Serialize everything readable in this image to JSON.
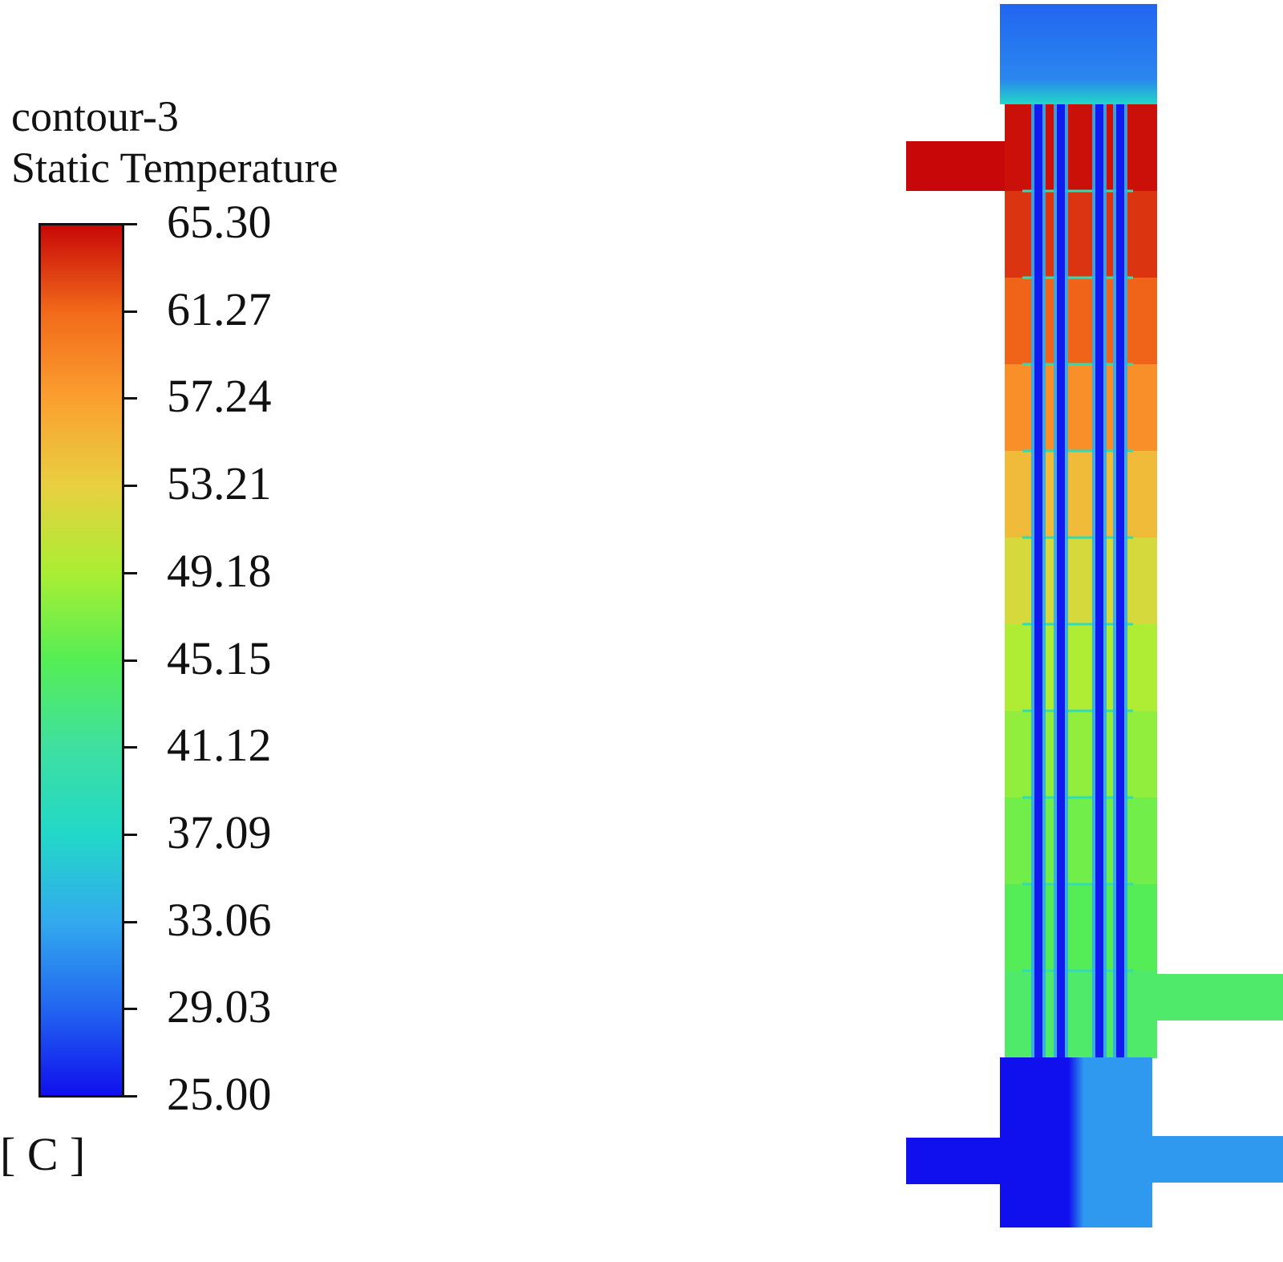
{
  "legend": {
    "title_line1": "contour-3",
    "title_line2": "Static Temperature",
    "unit": "[ C ]",
    "min": 25.0,
    "max": 65.3,
    "tick_labels": [
      "65.30",
      "61.27",
      "57.24",
      "53.21",
      "49.18",
      "45.15",
      "41.12",
      "37.09",
      "33.06",
      "29.03",
      "25.00"
    ],
    "colormap": [
      "#1010ee",
      "#2266f0",
      "#33aaee",
      "#22d8c8",
      "#3fe0a0",
      "#55ee55",
      "#aaee33",
      "#e8d040",
      "#fba030",
      "#f26a1a",
      "#c80808"
    ]
  },
  "figure": {
    "description_free": true,
    "regions": {
      "top_header": 29,
      "hot_inlet": 65.3,
      "shell_bands_top_to_bottom": [
        65.0,
        63.5,
        61.5,
        58.5,
        55.0,
        52.0,
        49.5,
        48.0,
        46.5,
        45.0,
        44.0
      ],
      "shell_outlet": 44.0,
      "tube_core": 25.5,
      "tube_wall": 33.0,
      "bottom_header_left": 25.0,
      "bottom_header_right": 32.0,
      "cold_inlet": 25.0,
      "cold_outlet": 32.0
    }
  }
}
